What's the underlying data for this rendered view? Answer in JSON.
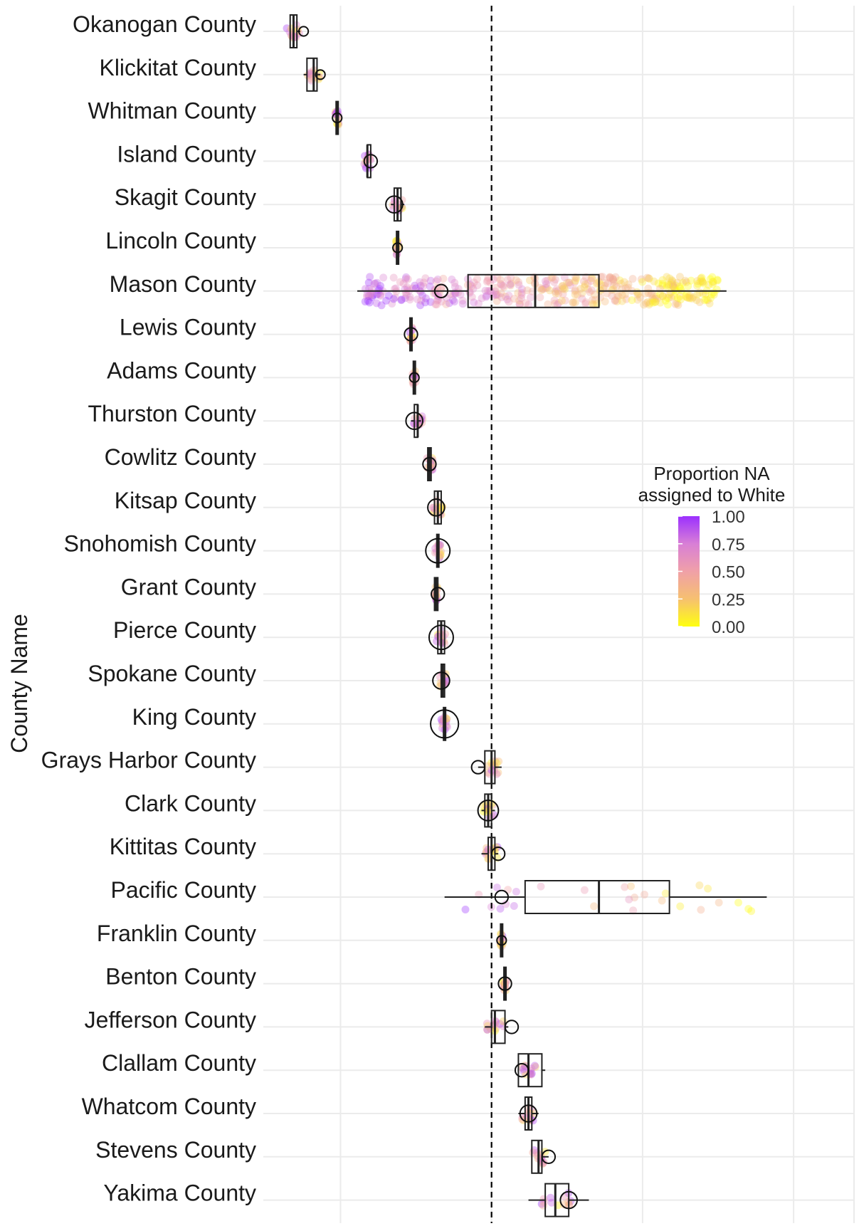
{
  "chart_data": {
    "type": "boxplot",
    "orientation": "horizontal",
    "ylabel": "County Name",
    "xlabel": "",
    "x_tick_labels_visible": false,
    "reference_line": {
      "x": 0,
      "style": "dashed",
      "color": "#000000"
    },
    "xlim": [
      -68,
      108
    ],
    "grid": true,
    "categories": [
      "Okanogan County",
      "Klickitat County",
      "Whitman County",
      "Island County",
      "Skagit County",
      "Lincoln County",
      "Mason County",
      "Lewis County",
      "Adams County",
      "Thurston County",
      "Cowlitz County",
      "Kitsap County",
      "Snohomish County",
      "Grant County",
      "Pierce County",
      "Spokane County",
      "King County",
      "Grays Harbor County",
      "Clark County",
      "Kittitas County",
      "Pacific County",
      "Franklin County",
      "Benton County",
      "Jefferson County",
      "Clallam County",
      "Whatcom County",
      "Stevens County",
      "Yakima County"
    ],
    "boxes": [
      {
        "county": "Okanogan County",
        "min": -60,
        "q1": -60,
        "median": -59,
        "q3": -58,
        "max": -57,
        "mean": -56,
        "mean_size": 1,
        "spread": 2
      },
      {
        "county": "Klickitat County",
        "min": -56,
        "q1": -55,
        "median": -53,
        "q3": -52,
        "max": -51,
        "mean": -51,
        "mean_size": 1,
        "spread": 2
      },
      {
        "county": "Whitman County",
        "min": -46,
        "q1": -46,
        "median": -46,
        "q3": -46,
        "max": -46,
        "mean": -46,
        "mean_size": 1,
        "spread": 0.5
      },
      {
        "county": "Island County",
        "min": -37,
        "q1": -37,
        "median": -37,
        "q3": -36,
        "max": -36,
        "mean": -36,
        "mean_size": 2,
        "spread": 1
      },
      {
        "county": "Skagit County",
        "min": -30,
        "q1": -29,
        "median": -28,
        "q3": -27,
        "max": -26,
        "mean": -29,
        "mean_size": 3,
        "spread": 1.5
      },
      {
        "county": "Lincoln County",
        "min": -28,
        "q1": -28,
        "median": -28,
        "q3": -28,
        "max": -28,
        "mean": -28,
        "mean_size": 1,
        "spread": 0.5
      },
      {
        "county": "Mason County",
        "min": -40,
        "q1": -7,
        "median": 13,
        "q3": 32,
        "max": 70,
        "mean": -15,
        "mean_size": 2,
        "spread": 35
      },
      {
        "county": "Lewis County",
        "min": -24,
        "q1": -24,
        "median": -24,
        "q3": -24,
        "max": -24,
        "mean": -24,
        "mean_size": 2,
        "spread": 0.5
      },
      {
        "county": "Adams County",
        "min": -23,
        "q1": -23,
        "median": -23,
        "q3": -23,
        "max": -23,
        "mean": -23,
        "mean_size": 1,
        "spread": 0.5
      },
      {
        "county": "Thurston County",
        "min": -24,
        "q1": -23,
        "median": -22,
        "q3": -22,
        "max": -21,
        "mean": -23,
        "mean_size": 3,
        "spread": 1.5
      },
      {
        "county": "Cowlitz County",
        "min": -19,
        "q1": -19,
        "median": -18.5,
        "q3": -18,
        "max": -18,
        "mean": -18.5,
        "mean_size": 2,
        "spread": 1
      },
      {
        "county": "Kitsap County",
        "min": -17,
        "q1": -17,
        "median": -16,
        "q3": -15,
        "max": -15,
        "mean": -16.5,
        "mean_size": 3,
        "spread": 1.5
      },
      {
        "county": "Snohomish County",
        "min": -16,
        "q1": -16,
        "median": -16,
        "q3": -16,
        "max": -16,
        "mean": -16,
        "mean_size": 5,
        "spread": 1
      },
      {
        "county": "Grant County",
        "min": -17,
        "q1": -17,
        "median": -16.5,
        "q3": -16,
        "max": -16,
        "mean": -16,
        "mean_size": 2,
        "spread": 0.5
      },
      {
        "county": "Pierce County",
        "min": -16,
        "q1": -16,
        "median": -15,
        "q3": -14,
        "max": -14,
        "mean": -15,
        "mean_size": 5,
        "spread": 1.5
      },
      {
        "county": "Spokane County",
        "min": -15,
        "q1": -15,
        "median": -14.5,
        "q3": -14,
        "max": -14,
        "mean": -15,
        "mean_size": 3,
        "spread": 1
      },
      {
        "county": "King County",
        "min": -14,
        "q1": -14,
        "median": -14,
        "q3": -14,
        "max": -14,
        "mean": -14,
        "mean_size": 6,
        "spread": 1
      },
      {
        "county": "Grays Harbor County",
        "min": -4,
        "q1": -2,
        "median": 0,
        "q3": 1,
        "max": 3,
        "mean": -4,
        "mean_size": 2,
        "spread": 2.5
      },
      {
        "county": "Clark County",
        "min": -3,
        "q1": -2,
        "median": -1,
        "q3": 0,
        "max": 1,
        "mean": -1,
        "mean_size": 4,
        "spread": 2
      },
      {
        "county": "Kittitas County",
        "min": -3,
        "q1": -1,
        "median": 0,
        "q3": 1,
        "max": 2,
        "mean": 2,
        "mean_size": 2,
        "spread": 2
      },
      {
        "county": "Pacific County",
        "min": -14,
        "q1": 10,
        "median": 32,
        "q3": 53,
        "max": 82,
        "mean": 3,
        "mean_size": 2,
        "spread": 40
      },
      {
        "county": "Franklin County",
        "min": 3,
        "q1": 3,
        "median": 3,
        "q3": 3,
        "max": 3,
        "mean": 3,
        "mean_size": 1,
        "spread": 0.5
      },
      {
        "county": "Benton County",
        "min": 4,
        "q1": 4,
        "median": 4,
        "q3": 4,
        "max": 4,
        "mean": 4,
        "mean_size": 2,
        "spread": 0.5
      },
      {
        "county": "Jefferson County",
        "min": -2,
        "q1": 0,
        "median": 1,
        "q3": 4,
        "max": 5,
        "mean": 6,
        "mean_size": 2,
        "spread": 2.5
      },
      {
        "county": "Clallam County",
        "min": 8,
        "q1": 8,
        "median": 11,
        "q3": 15,
        "max": 16,
        "mean": 9,
        "mean_size": 2,
        "spread": 2.5
      },
      {
        "county": "Whatcom County",
        "min": 8,
        "q1": 10,
        "median": 11,
        "q3": 12,
        "max": 14,
        "mean": 11,
        "mean_size": 3,
        "spread": 2
      },
      {
        "county": "Stevens County",
        "min": 12,
        "q1": 12,
        "median": 14,
        "q3": 15,
        "max": 17,
        "mean": 17,
        "mean_size": 2,
        "spread": 2
      },
      {
        "county": "Yakima County",
        "min": 11,
        "q1": 16,
        "median": 19,
        "q3": 23,
        "max": 29,
        "mean": 23,
        "mean_size": 3,
        "spread": 5
      }
    ],
    "legend": {
      "title_lines": [
        "Proportion NA",
        "assigned to White"
      ],
      "ticks": [
        "1.00",
        "0.75",
        "0.50",
        "0.25",
        "0.00"
      ],
      "tick_values": [
        1.0,
        0.75,
        0.5,
        0.25,
        0.0
      ],
      "colors": [
        "#9b30ff",
        "#d87fd6",
        "#f0a0a8",
        "#f6c070",
        "#ffff10"
      ],
      "placement": "right-center"
    }
  }
}
